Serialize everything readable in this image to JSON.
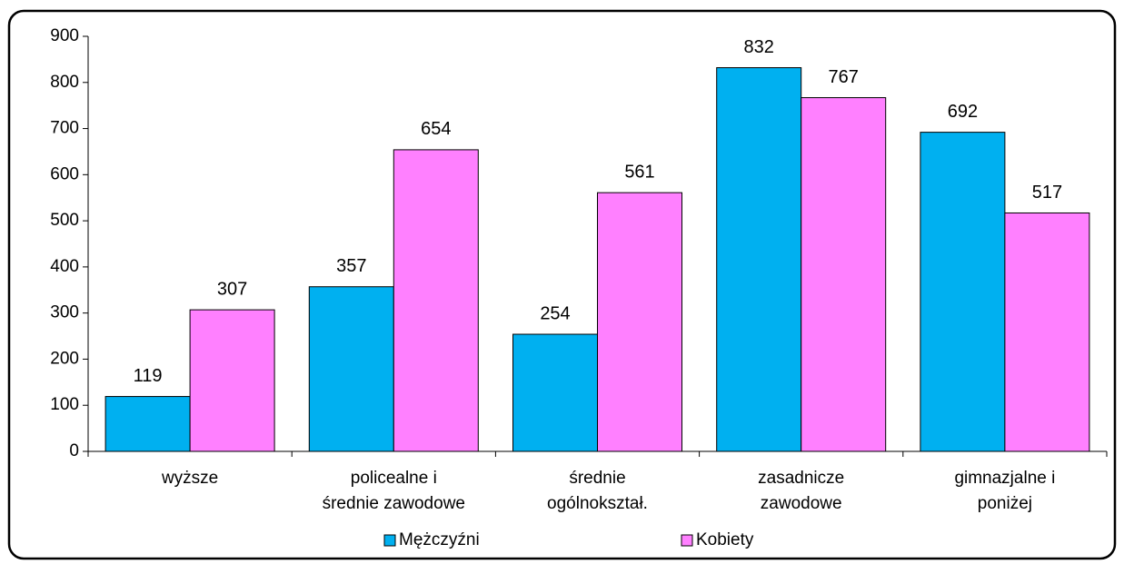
{
  "chart_data": {
    "type": "bar",
    "categories": [
      [
        "wyższe"
      ],
      [
        "policealne i",
        "średnie zawodowe"
      ],
      [
        "średnie",
        "ogólnokształ."
      ],
      [
        "zasadnicze",
        "zawodowe"
      ],
      [
        "gimnazjalne i",
        "poniżej"
      ]
    ],
    "series": [
      {
        "name": "Mężczyźni",
        "color": "#00b0f0",
        "values": [
          119,
          357,
          254,
          832,
          692
        ]
      },
      {
        "name": "Kobiety",
        "color": "#ff80ff",
        "values": [
          307,
          654,
          561,
          767,
          517
        ]
      }
    ],
    "ylim": [
      0,
      900
    ],
    "yticks": [
      0,
      100,
      200,
      300,
      400,
      500,
      600,
      700,
      800,
      900
    ],
    "legend": "bottom"
  }
}
